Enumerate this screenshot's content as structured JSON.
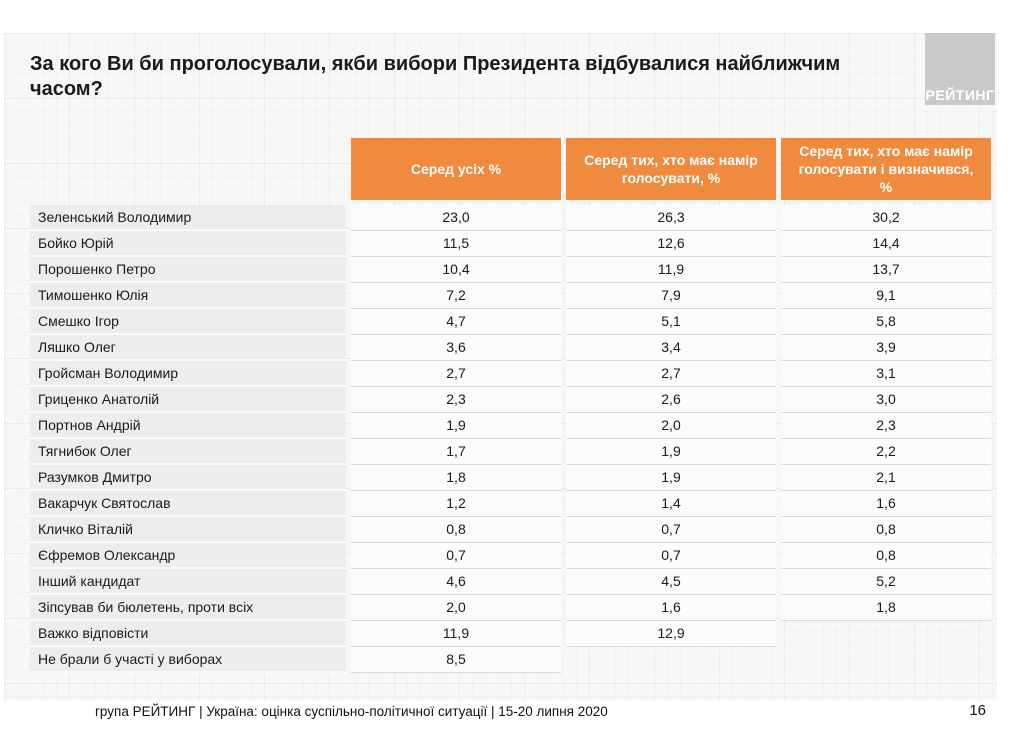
{
  "page": {
    "title": "За кого Ви би проголосували, якби вибори Президента відбувалися найближчим часом?",
    "logo_text": "РЕЙТИНГ",
    "footer_text": "група РЕЙТИНГ | Україна: оцінка суспільно-політичної ситуації | 15-20 липня 2020",
    "page_number": "16"
  },
  "colors": {
    "header_orange": "#ef8a3e",
    "logo_gray": "#c9c9c9",
    "name_cell_gray": "#ededed",
    "value_cell_bg": "#fbfbfb",
    "slide_bg": "#f7f7f5",
    "text": "#1a1a1a"
  },
  "table": {
    "columns": [
      "Серед усіх %",
      "Серед тих, хто має намір голосувати, %",
      "Серед тих, хто має намір голосувати і визначився, %"
    ],
    "rows": [
      {
        "name": "Зеленський Володимир",
        "values": [
          "23,0",
          "26,3",
          "30,2"
        ]
      },
      {
        "name": "Бойко Юрій",
        "values": [
          "11,5",
          "12,6",
          "14,4"
        ]
      },
      {
        "name": "Порошенко Петро",
        "values": [
          "10,4",
          "11,9",
          "13,7"
        ]
      },
      {
        "name": "Тимошенко Юлія",
        "values": [
          "7,2",
          "7,9",
          "9,1"
        ]
      },
      {
        "name": "Смешко Ігор",
        "values": [
          "4,7",
          "5,1",
          "5,8"
        ]
      },
      {
        "name": "Ляшко Олег",
        "values": [
          "3,6",
          "3,4",
          "3,9"
        ]
      },
      {
        "name": "Гройсман Володимир",
        "values": [
          "2,7",
          "2,7",
          "3,1"
        ]
      },
      {
        "name": "Гриценко Анатолій",
        "values": [
          "2,3",
          "2,6",
          "3,0"
        ]
      },
      {
        "name": "Портнов Андрій",
        "values": [
          "1,9",
          "2,0",
          "2,3"
        ]
      },
      {
        "name": "Тягнибок Олег",
        "values": [
          "1,7",
          "1,9",
          "2,2"
        ]
      },
      {
        "name": "Разумков Дмитро",
        "values": [
          "1,8",
          "1,9",
          "2,1"
        ]
      },
      {
        "name": "Вакарчук Святослав",
        "values": [
          "1,2",
          "1,4",
          "1,6"
        ]
      },
      {
        "name": "Кличко Віталій",
        "values": [
          "0,8",
          "0,7",
          "0,8"
        ]
      },
      {
        "name": "Єфремов Олександр",
        "values": [
          "0,7",
          "0,7",
          "0,8"
        ]
      },
      {
        "name": "Інший кандидат",
        "values": [
          "4,6",
          "4,5",
          "5,2"
        ]
      },
      {
        "name": "Зіпсував би бюлетень, проти всіх",
        "values": [
          "2,0",
          "1,6",
          "1,8"
        ]
      },
      {
        "name": "Важко відповісти",
        "values": [
          "11,9",
          "12,9",
          null
        ]
      },
      {
        "name": "Не брали б участі у виборах",
        "values": [
          "8,5",
          null,
          null
        ]
      }
    ]
  },
  "chart_data": {
    "type": "table",
    "title": "За кого Ви би проголосували, якби вибори Президента відбувалися найближчим часом?",
    "categories": [
      "Зеленський Володимир",
      "Бойко Юрій",
      "Порошенко Петро",
      "Тимошенко Юлія",
      "Смешко Ігор",
      "Ляшко Олег",
      "Гройсман Володимир",
      "Гриценко Анатолій",
      "Портнов Андрій",
      "Тягнибок Олег",
      "Разумков Дмитро",
      "Вакарчук Святослав",
      "Кличко Віталій",
      "Єфремов Олександр",
      "Інший кандидат",
      "Зіпсував би бюлетень, проти всіх",
      "Важко відповісти",
      "Не брали б участі у виборах"
    ],
    "series": [
      {
        "name": "Серед усіх %",
        "values": [
          23.0,
          11.5,
          10.4,
          7.2,
          4.7,
          3.6,
          2.7,
          2.3,
          1.9,
          1.7,
          1.8,
          1.2,
          0.8,
          0.7,
          4.6,
          2.0,
          11.9,
          8.5
        ]
      },
      {
        "name": "Серед тих, хто має намір голосувати, %",
        "values": [
          26.3,
          12.6,
          11.9,
          7.9,
          5.1,
          3.4,
          2.7,
          2.6,
          2.0,
          1.9,
          1.9,
          1.4,
          0.7,
          0.7,
          4.5,
          1.6,
          12.9,
          null
        ]
      },
      {
        "name": "Серед тих, хто має намір голосувати і визначився, %",
        "values": [
          30.2,
          14.4,
          13.7,
          9.1,
          5.8,
          3.9,
          3.1,
          3.0,
          2.3,
          2.2,
          2.1,
          1.6,
          0.8,
          0.8,
          5.2,
          1.8,
          null,
          null
        ]
      }
    ]
  }
}
